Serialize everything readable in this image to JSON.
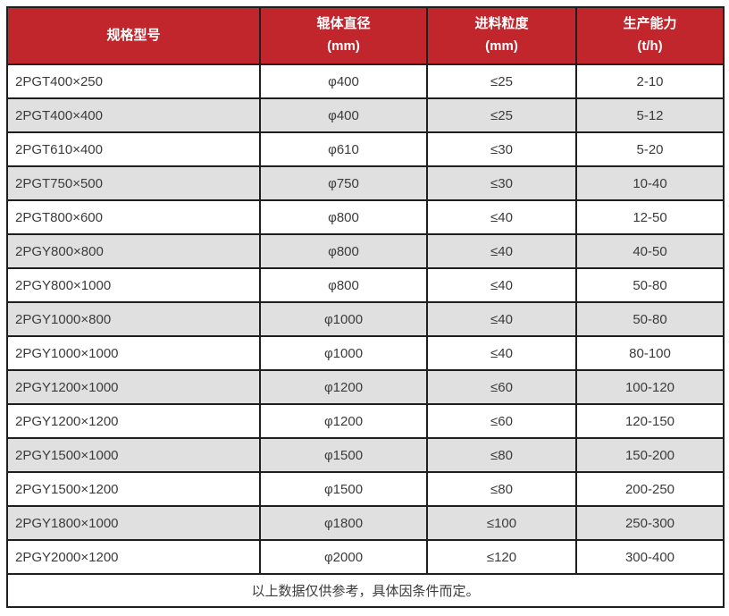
{
  "table": {
    "columns": [
      {
        "label": "规格型号",
        "unit": ""
      },
      {
        "label": "辊体直径",
        "unit": "(mm)"
      },
      {
        "label": "进料粒度",
        "unit": "(mm)"
      },
      {
        "label": "生产能力",
        "unit": "(t/h)"
      }
    ],
    "rows": [
      [
        "2PGT400×250",
        "φ400",
        "≤25",
        "2-10"
      ],
      [
        "2PGT400×400",
        "φ400",
        "≤25",
        "5-12"
      ],
      [
        "2PGT610×400",
        "φ610",
        "≤30",
        "5-20"
      ],
      [
        "2PGT750×500",
        "φ750",
        "≤30",
        "10-40"
      ],
      [
        "2PGT800×600",
        "φ800",
        "≤40",
        "12-50"
      ],
      [
        "2PGY800×800",
        "φ800",
        "≤40",
        "40-50"
      ],
      [
        "2PGY800×1000",
        "φ800",
        "≤40",
        "50-80"
      ],
      [
        "2PGY1000×800",
        "φ1000",
        "≤40",
        "50-80"
      ],
      [
        "2PGY1000×1000",
        "φ1000",
        "≤40",
        "80-100"
      ],
      [
        "2PGY1200×1000",
        "φ1200",
        "≤60",
        "100-120"
      ],
      [
        "2PGY1200×1200",
        "φ1200",
        "≤60",
        "120-150"
      ],
      [
        "2PGY1500×1000",
        "φ1500",
        "≤80",
        "150-200"
      ],
      [
        "2PGY1500×1200",
        "φ1500",
        "≤80",
        "200-250"
      ],
      [
        "2PGY1800×1000",
        "φ1800",
        "≤100",
        "250-300"
      ],
      [
        "2PGY2000×1200",
        "φ2000",
        "≤120",
        "300-400"
      ]
    ],
    "footer_note": "以上数据仅供参考，具体因条件而定。"
  },
  "colors": {
    "header_bg": "#c1262d",
    "header_text": "#ffffff",
    "row_alt_bg": "#e0e0e0",
    "row_bg": "#ffffff",
    "border": "#1f1f1f",
    "body_text": "#3b3b3b"
  }
}
